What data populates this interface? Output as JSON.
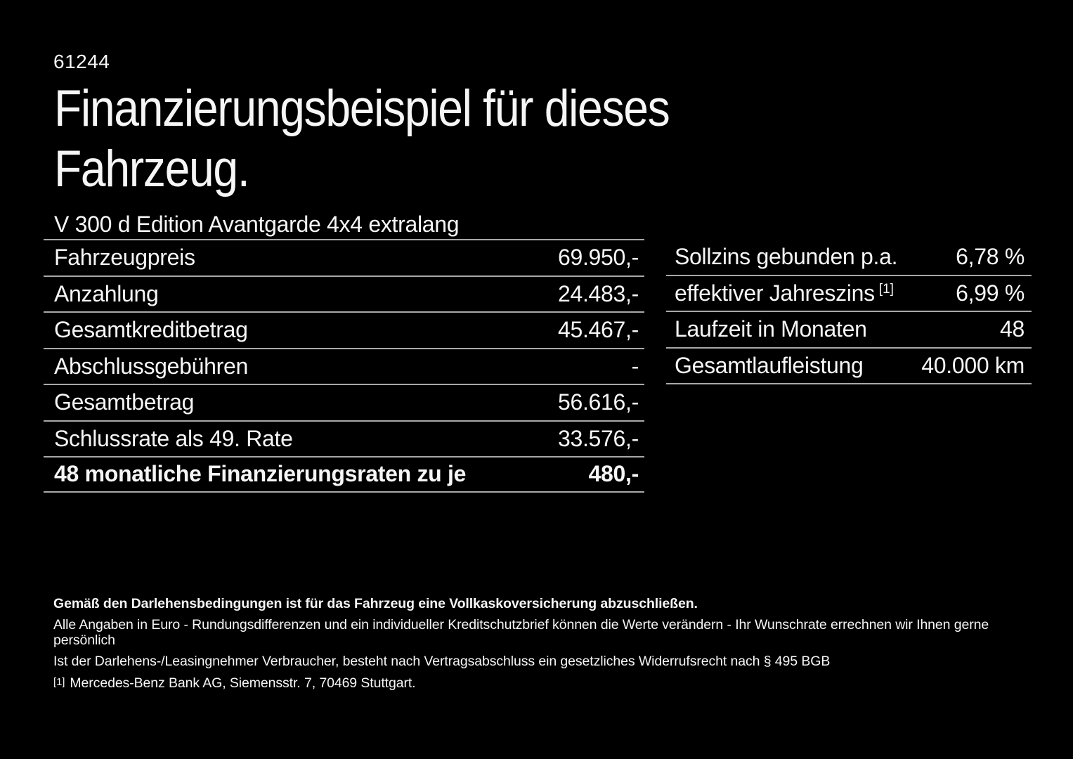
{
  "colors": {
    "background": "#000000",
    "text": "#f6f6f6",
    "divider": "#a8a8a8"
  },
  "header": {
    "doc_number": "61244",
    "title": "Finanzierungsbeispiel für dieses\nFahrzeug.",
    "vehicle_model": "V 300 d Edition Avantgarde 4x4 extralang"
  },
  "finance_table": {
    "rows": [
      {
        "label": "Fahrzeugpreis",
        "value": "69.950,-"
      },
      {
        "label": "Anzahlung",
        "value": "24.483,-"
      },
      {
        "label": "Gesamtkreditbetrag",
        "value": "45.467,-"
      },
      {
        "label": "Abschlussgebühren",
        "value": "-"
      },
      {
        "label": "Gesamtbetrag",
        "value": "56.616,-"
      },
      {
        "label": "Schlussrate als 49. Rate",
        "value": "33.576,-"
      },
      {
        "label": "48 monatliche Finanzierungsraten zu je",
        "value": "480,-"
      }
    ]
  },
  "conditions_table": {
    "rows": [
      {
        "label": "Sollzins gebunden p.a.",
        "value": "6,78 %"
      },
      {
        "label": "effektiver Jahreszins",
        "footnote_marker": "[1]",
        "value": "6,99 %"
      },
      {
        "label": "Laufzeit in Monaten",
        "value": "48"
      },
      {
        "label": "Gesamtlaufleistung",
        "value": "40.000 km"
      }
    ]
  },
  "footer": {
    "line1": "Gemäß den Darlehensbedingungen ist für das Fahrzeug eine Vollkaskoversicherung abzuschließen.",
    "line2": "Alle Angaben in Euro - Rundungsdifferenzen und ein individueller Kreditschutzbrief können die Werte verändern - Ihr Wunschrate errechnen wir Ihnen gerne persönlich",
    "line3": "Ist der Darlehens-/Leasingnehmer Verbraucher, besteht nach Vertragsabschluss ein gesetzliches Widerrufsrecht nach § 495 BGB",
    "footnote_marker": "[1]",
    "footnote_text": "Mercedes-Benz Bank AG, Siemensstr. 7, 70469 Stuttgart."
  }
}
